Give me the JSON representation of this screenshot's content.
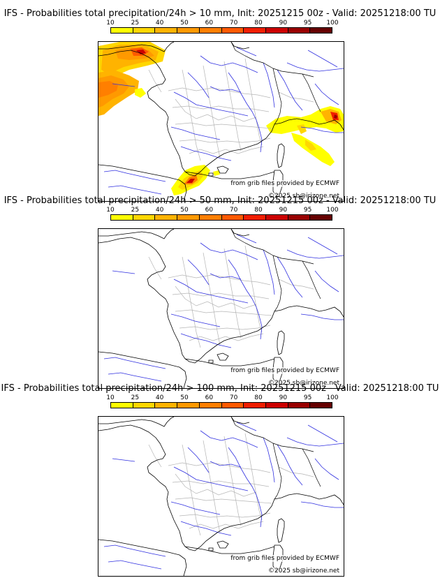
{
  "legend": {
    "ticks": [
      "10",
      "25",
      "40",
      "50",
      "60",
      "70",
      "80",
      "90",
      "95",
      "100"
    ],
    "colors": [
      "#ffff00",
      "#ffd700",
      "#ffb300",
      "#ff9900",
      "#ff7f00",
      "#ff5a00",
      "#f01e00",
      "#cc0000",
      "#990000",
      "#660000"
    ]
  },
  "panels": [
    {
      "title": "IFS - Probabilities total precipitation/24h > 10 mm, Init: 20251215 00z - Valid: 20251218:00 TU",
      "source": "from grib files provided by ECMWF",
      "copyright": "©2025 sb@irizone.net",
      "precip_areas": [
        "english-channel",
        "brittany",
        "gulf-of-lion",
        "north-italy",
        "ligurian"
      ]
    },
    {
      "title": "IFS - Probabilities total precipitation/24h > 50 mm, Init: 20251215 00z - Valid: 20251218:00 TU",
      "source": "from grib files provided by ECMWF",
      "copyright": "©2025 sb@irizone.net",
      "precip_areas": []
    },
    {
      "title": "IFS - Probabilities total precipitation/24h > 100 mm, Init: 20251215 00z - Valid: 20251218:00 TU",
      "source": "from grib files provided by ECMWF",
      "copyright": "©2025 sb@irizone.net",
      "precip_areas": []
    }
  ]
}
